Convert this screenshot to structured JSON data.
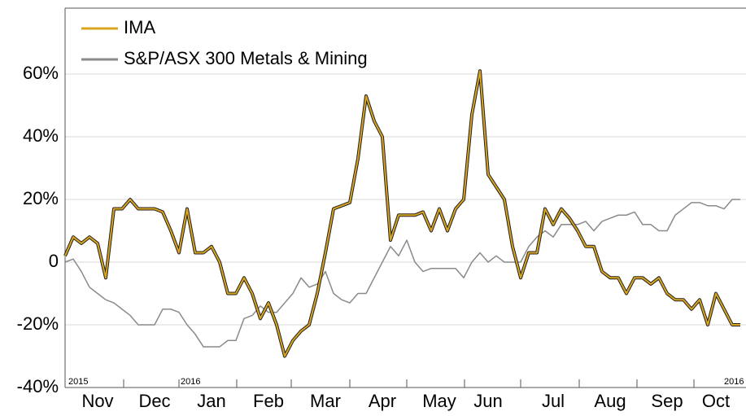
{
  "chart_data": {
    "type": "line",
    "categories": [
      null,
      null,
      null,
      null,
      "Nov",
      null,
      null,
      null,
      null,
      null,
      null,
      "Dec",
      null,
      null,
      null,
      null,
      null,
      null,
      "Jan",
      null,
      null,
      null,
      null,
      null,
      null,
      "Feb",
      null,
      null,
      null,
      null,
      null,
      null,
      "Mar",
      null,
      null,
      null,
      null,
      null,
      null,
      "Apr",
      null,
      null,
      null,
      null,
      null,
      null,
      "May",
      null,
      null,
      null,
      null,
      null,
      "Jun",
      null,
      null,
      null,
      null,
      null,
      null,
      null,
      "Jul",
      null,
      null,
      null,
      null,
      null,
      null,
      "Aug",
      null,
      null,
      null,
      null,
      null,
      null,
      "Sep",
      null,
      null,
      null,
      null,
      null,
      "Oct",
      null,
      null,
      null
    ],
    "year_labels": [
      "2015",
      "2016",
      "2016"
    ],
    "series": [
      {
        "name": "IMA",
        "color": "#d9a41e",
        "values": [
          2,
          8,
          6,
          8,
          6,
          -5,
          17,
          17,
          20,
          17,
          17,
          17,
          16,
          10,
          3,
          17,
          3,
          3,
          5,
          0,
          -10,
          -10,
          -5,
          -10,
          -18,
          -13,
          -20,
          -30,
          -25,
          -22,
          -20,
          -10,
          3,
          17,
          18,
          19,
          33,
          53,
          45,
          40,
          7,
          15,
          15,
          15,
          16,
          10,
          17,
          10,
          17,
          20,
          47,
          61,
          28,
          24,
          20,
          5,
          -5,
          3,
          3,
          17,
          12,
          17,
          14,
          10,
          5,
          5,
          -3,
          -5,
          -5,
          -10,
          -5,
          -5,
          -7,
          -5,
          -10,
          -12,
          -12,
          -15,
          -12,
          -20,
          -10,
          -15,
          -20,
          -20
        ]
      },
      {
        "name": "S&P/ASX 300 Metals & Mining",
        "color": "#8a8a8a",
        "values": [
          0,
          1,
          -3,
          -8,
          -10,
          -12,
          -13,
          -15,
          -17,
          -20,
          -20,
          -20,
          -15,
          -15,
          -16,
          -20,
          -23,
          -27,
          -27,
          -27,
          -25,
          -25,
          -18,
          -17,
          -14,
          -16,
          -16,
          -13,
          -10,
          -5,
          -8,
          -7,
          -3,
          -10,
          -12,
          -13,
          -10,
          -10,
          -5,
          0,
          5,
          2,
          7,
          0,
          -3,
          -2,
          -2,
          -2,
          -2,
          -5,
          0,
          3,
          0,
          2,
          0,
          0,
          0,
          5,
          8,
          10,
          8,
          12,
          12,
          12,
          13,
          10,
          13,
          14,
          15,
          15,
          16,
          12,
          12,
          10,
          10,
          15,
          17,
          19,
          19,
          18,
          18,
          17,
          20,
          20
        ]
      }
    ],
    "ylim": [
      -40,
      80
    ],
    "yticks": [
      {
        "value": -40,
        "label": "-40%"
      },
      {
        "value": -20,
        "label": "-20%"
      },
      0,
      {
        "value": 20,
        "label": "20%"
      },
      {
        "value": 40,
        "label": "40%"
      },
      {
        "value": 60,
        "label": "60%"
      }
    ],
    "grid": true,
    "legend": "upper left"
  }
}
